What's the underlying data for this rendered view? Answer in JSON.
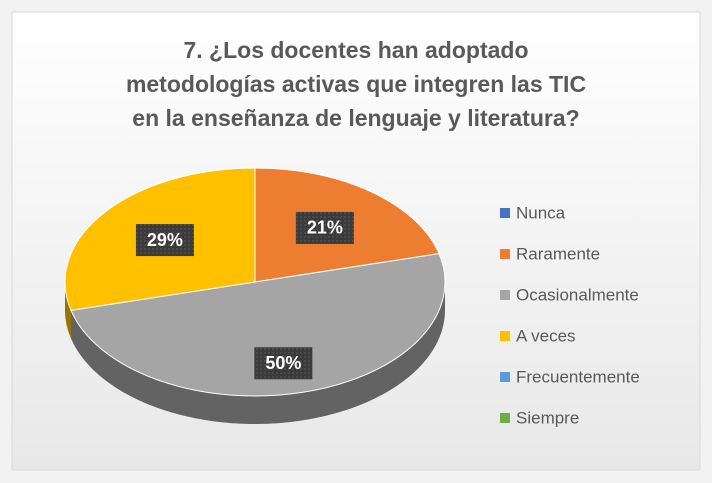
{
  "chart_data": {
    "type": "pie",
    "title": [
      "7. ¿Los docentes han adoptado",
      "metodologías activas que integren las TIC",
      "en la enseñanza de lenguaje y literatura?"
    ],
    "categories": [
      "Nunca",
      "Raramente",
      "Ocasionalmente",
      "A veces",
      "Frecuentemente",
      "Siempre"
    ],
    "values": [
      0,
      21,
      50,
      29,
      0,
      0
    ],
    "value_labels": [
      null,
      "21%",
      "50%",
      "29%",
      null,
      null
    ],
    "colors": [
      "#4472c4",
      "#ed7d31",
      "#a5a5a5",
      "#ffc000",
      "#5b9bd5",
      "#70ad47"
    ],
    "legend": "right"
  }
}
